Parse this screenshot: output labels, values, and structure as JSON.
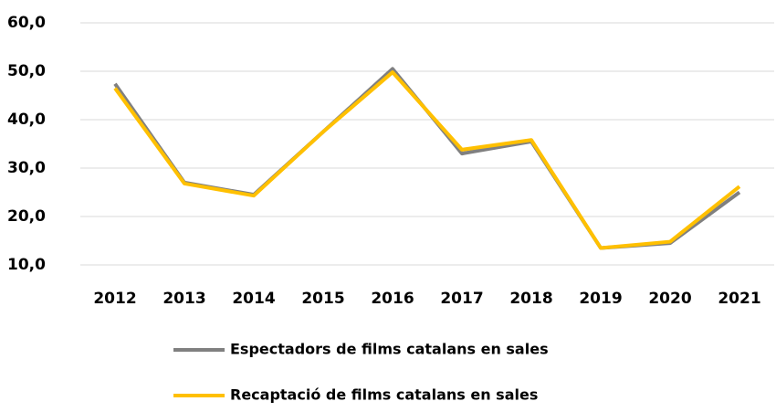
{
  "chart_data": {
    "type": "line",
    "categories": [
      "2012",
      "2013",
      "2014",
      "2015",
      "2016",
      "2017",
      "2018",
      "2019",
      "2020",
      "2021"
    ],
    "series": [
      {
        "name": "Espectadors de films catalans en sales",
        "color": "#808080",
        "values": [
          47.4,
          27,
          24.5,
          37.5,
          50.5,
          33,
          35.5,
          13.5,
          14.5,
          25
        ]
      },
      {
        "name": "Recaptació de films catalans en sales",
        "color": "#ffc000",
        "values": [
          46.5,
          26.8,
          24.3,
          37.5,
          49.8,
          33.8,
          35.8,
          13.5,
          14.8,
          26.2
        ]
      }
    ],
    "ylim": [
      10,
      60
    ],
    "yticks": [
      {
        "value": 10,
        "label": "10,0"
      },
      {
        "value": 20,
        "label": "20,0"
      },
      {
        "value": 30,
        "label": "30,0"
      },
      {
        "value": 40,
        "label": "40,0"
      },
      {
        "value": 50,
        "label": "50,0"
      },
      {
        "value": 60,
        "label": "60,0"
      }
    ],
    "grid": true
  }
}
